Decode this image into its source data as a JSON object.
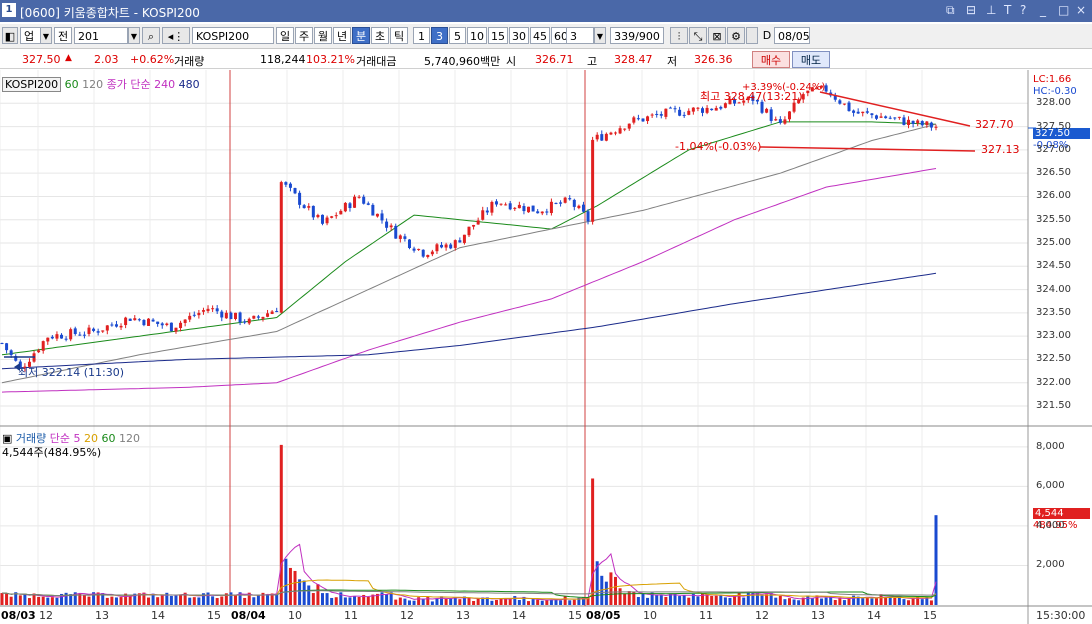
{
  "titlebar": {
    "number": "1",
    "title": "[0600] 키움종합차트 - KOSPI200",
    "icons": [
      "restore-icon",
      "link-icon",
      "pin-icon",
      "text-icon",
      "help-icon",
      "minimize-icon",
      "maximize-icon",
      "close-icon"
    ]
  },
  "toolbar": {
    "market": "업",
    "type": "전",
    "code": "201",
    "name": "KOSPI200",
    "periods": [
      "일",
      "주",
      "월",
      "년",
      "분",
      "초",
      "틱"
    ],
    "selected_period": "분",
    "intervals": [
      "1",
      "3",
      "5",
      "10",
      "15",
      "30",
      "45",
      "60"
    ],
    "selected_interval": "3",
    "count_value": "3",
    "count_range": "339/900",
    "date_label": "D",
    "date": "08/05"
  },
  "quote": {
    "price": "327.50",
    "change": "2.03",
    "change_pct": "+0.62%",
    "volume_label": "거래량",
    "volume": "118,244",
    "volume_ratio": "103.21%",
    "amount_label": "거래대금",
    "amount": "5,740,960백만",
    "open_label": "시",
    "open": "326.71",
    "high_label": "고",
    "high": "328.47",
    "low_label": "저",
    "low": "326.36",
    "buy": "매수",
    "sell": "매도"
  },
  "price_panel": {
    "legend": {
      "name": "KOSPI200",
      "ma1": "60",
      "ma2": "120",
      "ma_type": "종가 단순",
      "ma3": "240",
      "ma4": "480"
    },
    "right_labels": {
      "lc": "LC:1.66",
      "hc": "HC:-0.30",
      "current": "327.50",
      "current_pct": "-0.08%"
    },
    "annotations": {
      "high": "최고 328.47(13:21)",
      "high_pct": "+3.39%(-0.24%)",
      "low_pct": "-1.04%(-0.03%)",
      "low": "최저 322.14 (11:30)",
      "line1": "327.70",
      "line2": "327.13"
    }
  },
  "volume_panel": {
    "legend": {
      "name": "거래량",
      "ma_type": "단순",
      "ma1": "5",
      "ma2": "20",
      "ma3": "60",
      "ma4": "120"
    },
    "last": "4,544주(484.95%)",
    "right_value": "4,544",
    "right_pct": "484.95%"
  },
  "chart_data": [
    {
      "type": "candlestick",
      "name": "KOSPI200",
      "x_axis_labels": [
        "08/03",
        "12",
        "13",
        "14",
        "15",
        "08/04",
        "10",
        "11",
        "12",
        "13",
        "14",
        "15",
        "08/05",
        "10",
        "11",
        "12",
        "13",
        "14",
        "15"
      ],
      "y_ticks": [
        321.5,
        322.0,
        322.5,
        323.0,
        323.5,
        324.0,
        324.5,
        325.0,
        325.5,
        326.0,
        326.5,
        327.0,
        327.5,
        328.0
      ],
      "ylim": [
        321.2,
        328.5
      ],
      "close_path": [
        [
          0,
          322.85
        ],
        [
          4,
          322.3
        ],
        [
          10,
          323.0
        ],
        [
          20,
          323.1
        ],
        [
          28,
          323.4
        ],
        [
          37,
          323.2
        ],
        [
          45,
          323.6
        ],
        [
          54,
          323.3
        ],
        [
          60,
          323.6
        ],
        [
          61,
          326.3
        ],
        [
          70,
          325.4
        ],
        [
          78,
          326.0
        ],
        [
          86,
          325.2
        ],
        [
          92,
          324.8
        ],
        [
          99,
          325.0
        ],
        [
          108,
          325.9
        ],
        [
          117,
          325.7
        ],
        [
          124,
          325.9
        ],
        [
          128,
          325.5
        ],
        [
          129,
          327.2
        ],
        [
          137,
          327.6
        ],
        [
          146,
          327.8
        ],
        [
          155,
          327.9
        ],
        [
          164,
          328.1
        ],
        [
          170,
          327.5
        ],
        [
          175,
          328.2
        ],
        [
          180,
          328.3
        ],
        [
          186,
          327.8
        ],
        [
          193,
          327.7
        ],
        [
          200,
          327.55
        ],
        [
          204,
          327.5
        ]
      ],
      "moving_averages": [
        {
          "name": "60",
          "color": "#1a8a1a",
          "values": [
            [
              0,
              322.6
            ],
            [
              30,
              323.0
            ],
            [
              60,
              323.4
            ],
            [
              75,
              324.6
            ],
            [
              90,
              325.6
            ],
            [
              100,
              325.5
            ],
            [
              120,
              325.3
            ],
            [
              130,
              325.8
            ],
            [
              150,
              327.0
            ],
            [
              170,
              327.6
            ],
            [
              190,
              327.6
            ],
            [
              204,
              327.55
            ]
          ]
        },
        {
          "name": "120",
          "color": "#808080",
          "values": [
            [
              0,
              322.0
            ],
            [
              30,
              322.6
            ],
            [
              60,
              323.1
            ],
            [
              80,
              324.0
            ],
            [
              100,
              324.9
            ],
            [
              120,
              325.3
            ],
            [
              140,
              325.7
            ],
            [
              170,
              326.5
            ],
            [
              190,
              327.2
            ],
            [
              204,
              327.55
            ]
          ]
        },
        {
          "name": "240",
          "color": "#c030c0",
          "values": [
            [
              0,
              321.8
            ],
            [
              40,
              321.9
            ],
            [
              60,
              322.0
            ],
            [
              80,
              322.7
            ],
            [
              100,
              323.3
            ],
            [
              120,
              323.8
            ],
            [
              140,
              324.6
            ],
            [
              160,
              325.5
            ],
            [
              180,
              326.2
            ],
            [
              204,
              326.6
            ]
          ]
        },
        {
          "name": "480",
          "color": "#1a2a8a",
          "values": [
            [
              0,
              322.3
            ],
            [
              40,
              322.5
            ],
            [
              80,
              322.6
            ],
            [
              100,
              322.8
            ],
            [
              130,
              323.2
            ],
            [
              160,
              323.7
            ],
            [
              204,
              324.35
            ]
          ]
        }
      ]
    },
    {
      "type": "bar",
      "name": "거래량",
      "y_ticks": [
        2000,
        4000,
        6000,
        8000
      ],
      "ylim": [
        0,
        8600
      ],
      "last_value": 4544,
      "spikes": [
        {
          "x": 61,
          "value": 8100
        },
        {
          "x": 129,
          "value": 6400
        },
        {
          "x": 204,
          "value": 4544
        }
      ]
    }
  ]
}
